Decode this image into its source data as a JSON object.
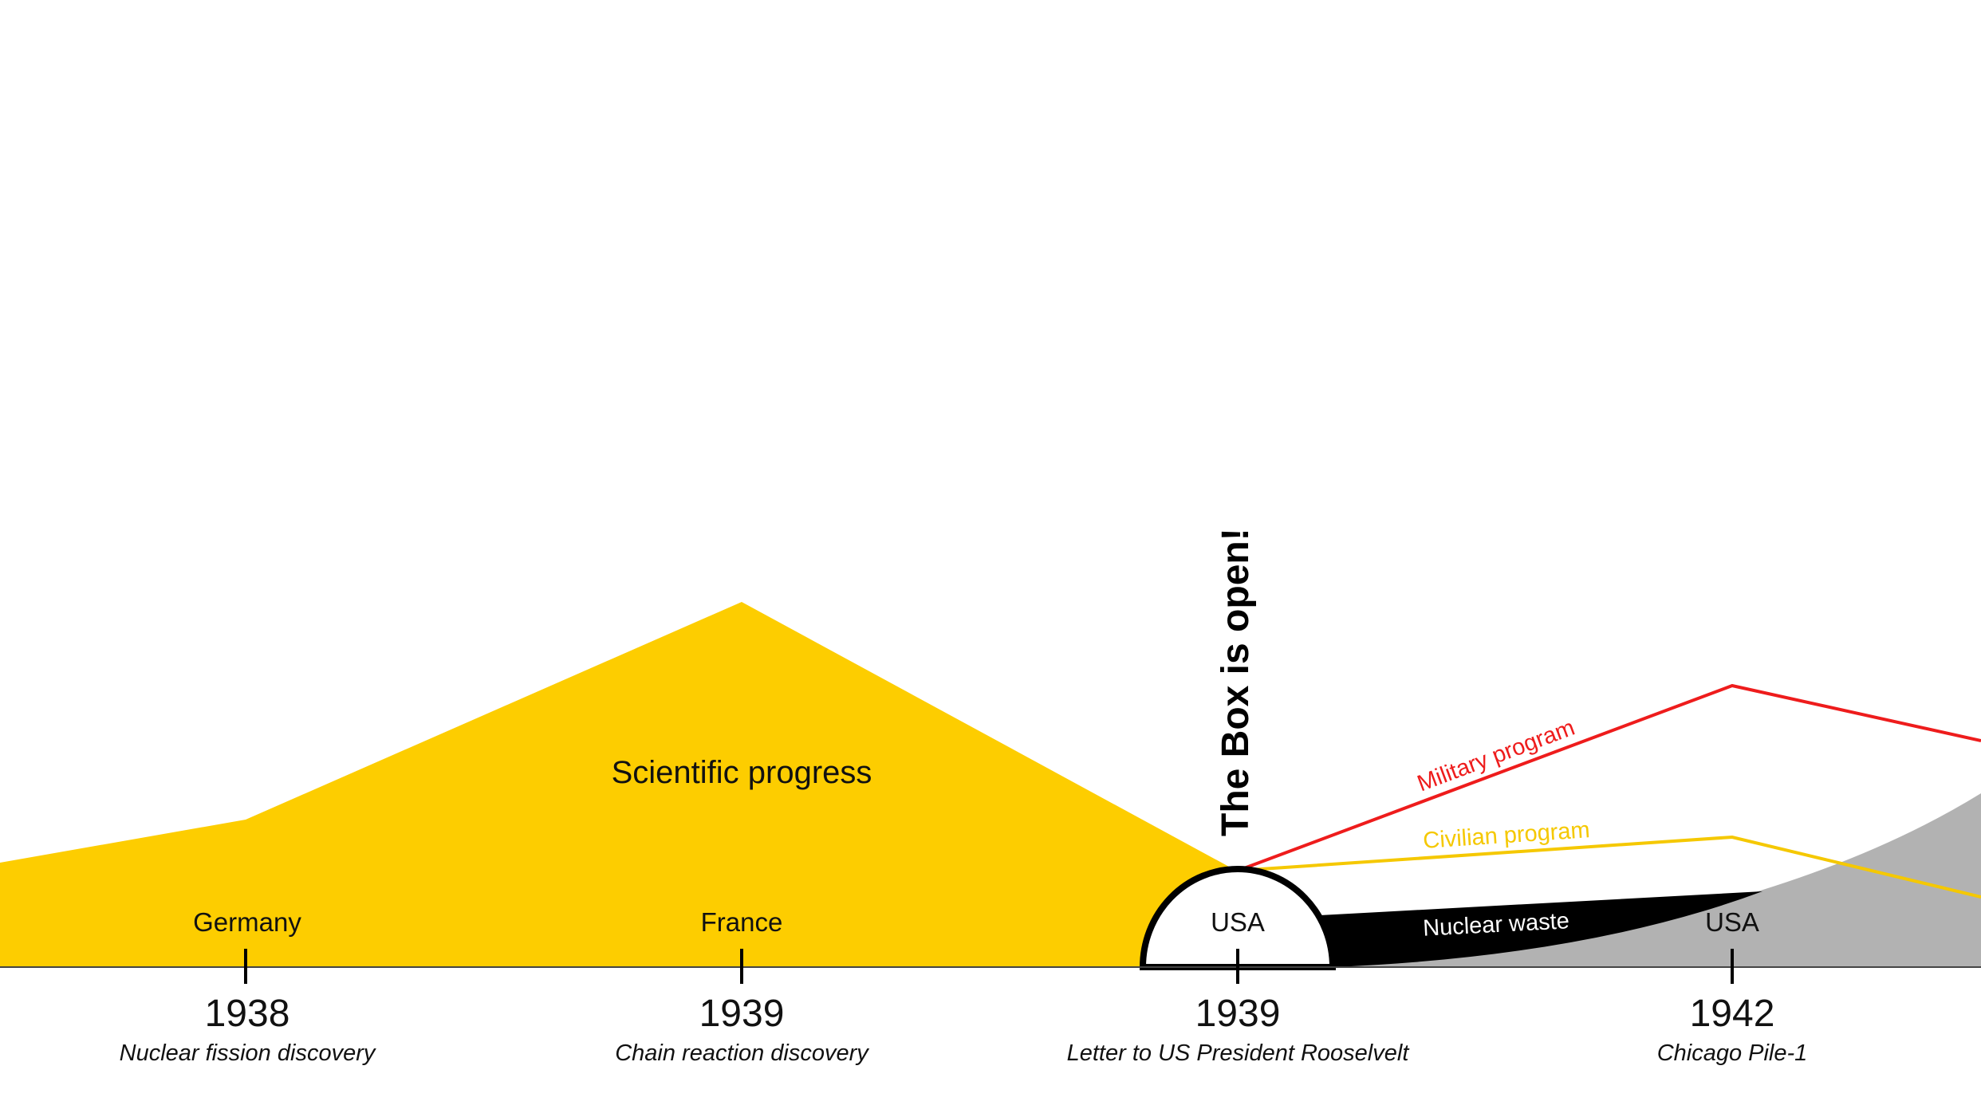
{
  "headline": "The Box is open!",
  "areas": {
    "scientific_progress": "Scientific progress",
    "nuclear_waste": "Nuclear waste"
  },
  "programs": {
    "military": "Military program",
    "civilian": "Civilian program"
  },
  "milestones": [
    {
      "country": "Germany",
      "year": "1938",
      "caption": "Nuclear fission discovery"
    },
    {
      "country": "France",
      "year": "1939",
      "caption": "Chain reaction discovery"
    },
    {
      "country": "USA",
      "year": "1939",
      "caption": "Letter to US President Rooselvelt"
    },
    {
      "country": "USA",
      "year": "1942",
      "caption": "Chicago Pile-1"
    }
  ],
  "colors": {
    "scientific_progress": "#FDCD00",
    "military": "#EE1C1C",
    "civilian": "#F5C800",
    "waste": "#000000",
    "gray_area": "#B2B2B2",
    "text": "#111111"
  }
}
